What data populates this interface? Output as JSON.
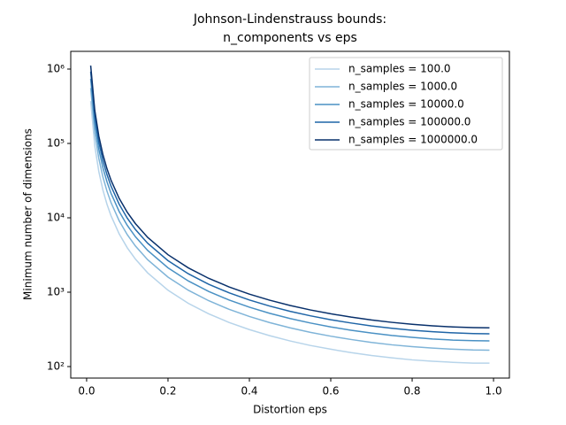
{
  "chart_data": {
    "type": "line",
    "title": [
      "Johnson-Lindenstrauss bounds:",
      "n_components vs eps"
    ],
    "x_label": "Distortion eps",
    "y_label": "Minimum number of dimensions",
    "y_scale": "log",
    "legend": "upper right",
    "x": [
      0.01,
      0.02,
      0.03,
      0.04,
      0.05,
      0.06,
      0.08,
      0.1,
      0.12,
      0.15,
      0.2,
      0.25,
      0.3,
      0.35,
      0.4,
      0.45,
      0.5,
      0.55,
      0.6,
      0.65,
      0.7,
      0.75,
      0.8,
      0.85,
      0.9,
      0.95,
      0.99
    ],
    "series": [
      {
        "name": "n_samples = 100.0",
        "color": "#b7d4ea",
        "values": [
          370882,
          93349,
          41771,
          23656,
          15245,
          10660,
          6081,
          3947,
          2781,
          1819,
          1063,
          707,
          512,
          392,
          314,
          260,
          221,
          192,
          171,
          154,
          141,
          131,
          123,
          118,
          114,
          111,
          111
        ]
      },
      {
        "name": "n_samples = 1000.0",
        "color": "#7fb4d8",
        "values": [
          556323,
          140024,
          62657,
          35484,
          22867,
          15990,
          9121,
          5921,
          4171,
          2729,
          1594,
          1061,
          768,
          588,
          471,
          390,
          332,
          288,
          256,
          231,
          211,
          196,
          185,
          177,
          171,
          167,
          166
        ]
      },
      {
        "name": "n_samples = 10000.0",
        "color": "#4a91c4",
        "values": [
          741764,
          186698,
          83542,
          47312,
          30489,
          21320,
          12162,
          7895,
          5562,
          3639,
          2125,
          1415,
          1023,
          785,
          628,
          520,
          442,
          385,
          341,
          308,
          282,
          262,
          247,
          235,
          227,
          223,
          221
        ]
      },
      {
        "name": "n_samples = 100000.0",
        "color": "#1f65a7",
        "values": [
          927205,
          233373,
          104428,
          59140,
          38112,
          26650,
          15202,
          9868,
          6952,
          4548,
          2657,
          1768,
          1279,
          981,
          785,
          650,
          553,
          481,
          426,
          385,
          352,
          327,
          308,
          294,
          284,
          278,
          276
        ]
      },
      {
        "name": "n_samples = 1000000.0",
        "color": "#08306b",
        "values": [
          1112646,
          280047,
          125313,
          70968,
          45734,
          31979,
          18243,
          11842,
          8343,
          5458,
          3188,
          2122,
          1535,
          1177,
          942,
          780,
          663,
          577,
          512,
          462,
          423,
          393,
          370,
          353,
          341,
          334,
          332
        ]
      }
    ],
    "xlim": [
      -0.039,
      1.039
    ],
    "xticks": [
      {
        "value": 0,
        "label": "0.0"
      },
      0.2,
      0.4,
      0.6,
      0.8,
      {
        "value": 1,
        "label": "1.0"
      }
    ],
    "ylim": [
      70,
      1730000
    ],
    "yticks": [
      {
        "value": 100,
        "label": "10²"
      },
      {
        "value": 1000,
        "label": "10³"
      },
      {
        "value": 10000,
        "label": "10⁴"
      },
      {
        "value": 100000,
        "label": "10⁵"
      },
      {
        "value": 1000000,
        "label": "10⁶"
      }
    ]
  }
}
